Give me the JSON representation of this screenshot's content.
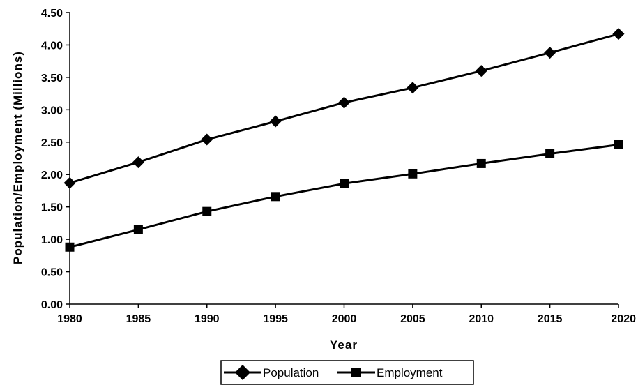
{
  "chart_data": {
    "type": "line",
    "title": "",
    "xlabel": "Year",
    "ylabel": "Population/Employment  (Millions)",
    "x": [
      1980,
      1985,
      1990,
      1995,
      2000,
      2005,
      2010,
      2015,
      2020
    ],
    "xlim": [
      1980,
      2020
    ],
    "ylim": [
      0,
      4.5
    ],
    "x_ticks": [
      "1980",
      "1985",
      "1990",
      "1995",
      "2000",
      "2005",
      "2010",
      "2015",
      "2020"
    ],
    "y_ticks": [
      "0.00",
      "0.50",
      "1.00",
      "1.50",
      "2.00",
      "2.50",
      "3.00",
      "3.50",
      "4.00",
      "4.50"
    ],
    "grid": false,
    "legend_position": "bottom",
    "series": [
      {
        "name": "Population",
        "marker": "diamond",
        "color": "#000000",
        "values": [
          1.87,
          2.19,
          2.54,
          2.82,
          3.11,
          3.34,
          3.6,
          3.88,
          4.17
        ]
      },
      {
        "name": "Employment",
        "marker": "square",
        "color": "#000000",
        "values": [
          0.88,
          1.15,
          1.43,
          1.66,
          1.86,
          2.01,
          2.17,
          2.32,
          2.46
        ]
      }
    ]
  }
}
